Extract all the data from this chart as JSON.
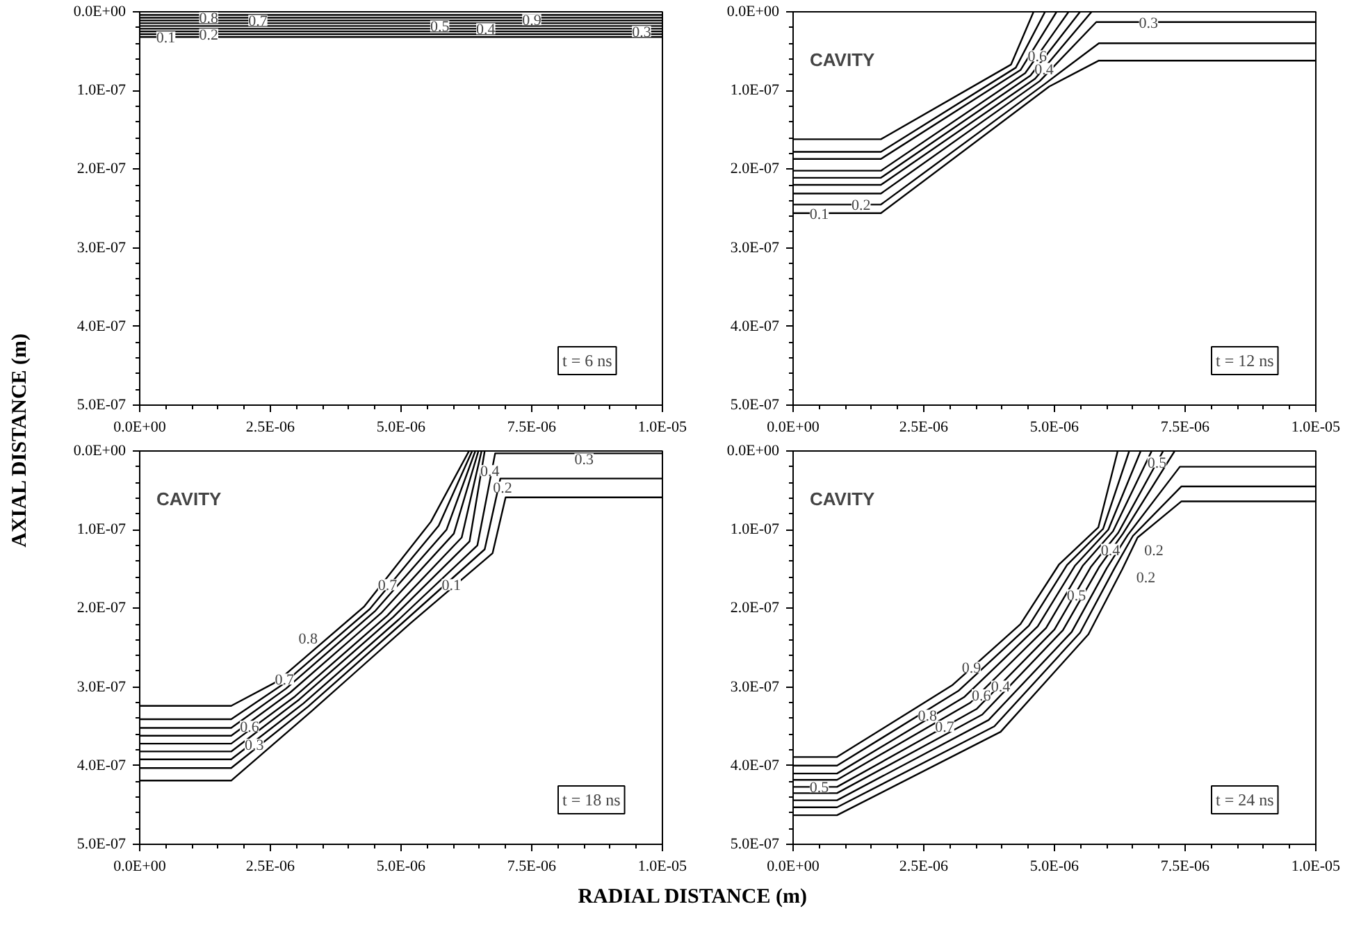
{
  "chart_data": [
    {
      "type": "line",
      "title": "t = 6 ns",
      "ylabel": "AXIAL DISTANCE (m)",
      "xlim": [
        0,
        1e-05
      ],
      "ylim": [
        5e-07,
        0
      ],
      "xticks": [
        {
          "value": 0,
          "label": "0.0E+00"
        },
        {
          "value": 2.5e-06,
          "label": "2.5E-06"
        },
        {
          "value": 5e-06,
          "label": "5.0E-06"
        },
        {
          "value": 7.5e-06,
          "label": "7.5E-06"
        },
        {
          "value": 1e-05,
          "label": "1.0E-05"
        }
      ],
      "yticks": [
        {
          "value": 0,
          "label": "0.0E+00"
        },
        {
          "value": 1e-07,
          "label": "1.0E-07"
        },
        {
          "value": 2e-07,
          "label": "2.0E-07"
        },
        {
          "value": 3e-07,
          "label": "3.0E-07"
        },
        {
          "value": 4e-07,
          "label": "4.0E-07"
        },
        {
          "value": 5e-07,
          "label": "5.0E-07"
        }
      ],
      "grid": false,
      "series": [
        {
          "color": "#000000",
          "x": [
            0,
            1e-05
          ],
          "values": [
            3.2e-08,
            3.2e-08
          ]
        },
        {
          "color": "#000000",
          "x": [
            0,
            1e-05
          ],
          "values": [
            2.85e-08,
            2.85e-08
          ]
        },
        {
          "color": "#000000",
          "x": [
            0,
            1e-05
          ],
          "values": [
            2.5e-08,
            2.5e-08
          ]
        },
        {
          "color": "#000000",
          "x": [
            0,
            1e-05
          ],
          "values": [
            2.15e-08,
            2.15e-08
          ]
        },
        {
          "color": "#000000",
          "x": [
            0,
            1e-05
          ],
          "values": [
            1.8e-08,
            1.8e-08
          ]
        },
        {
          "color": "#000000",
          "x": [
            0,
            1e-05
          ],
          "values": [
            1.45e-08,
            1.45e-08
          ]
        },
        {
          "color": "#000000",
          "x": [
            0,
            1e-05
          ],
          "values": [
            1.1e-08,
            1.1e-08
          ]
        },
        {
          "color": "#000000",
          "x": [
            0,
            1e-05
          ],
          "values": [
            7.5e-09,
            7.5e-09
          ]
        },
        {
          "color": "#000000",
          "x": [
            0,
            1e-05
          ],
          "values": [
            4e-09,
            4e-09
          ]
        }
      ],
      "annotations": [
        {
          "text": "0.1",
          "x": 5e-07,
          "y": 3.2e-08
        },
        {
          "text": "0.2",
          "x": 1.32e-06,
          "y": 2.85e-08
        },
        {
          "text": "0.8",
          "x": 1.32e-06,
          "y": 7.5e-09
        },
        {
          "text": "0.7",
          "x": 2.26e-06,
          "y": 1.1e-08
        },
        {
          "text": "0.5",
          "x": 5.74e-06,
          "y": 1.8e-08
        },
        {
          "text": "0.4",
          "x": 6.62e-06,
          "y": 2.15e-08
        },
        {
          "text": "0.9",
          "x": 7.5e-06,
          "y": 1e-08
        },
        {
          "text": "0.3",
          "x": 9.6e-06,
          "y": 2.5e-08
        }
      ]
    },
    {
      "type": "line",
      "title": "t = 12 ns",
      "xlim": [
        0,
        1e-05
      ],
      "ylim": [
        5e-07,
        0
      ],
      "xticks": [
        {
          "value": 0,
          "label": "0.0E+00"
        },
        {
          "value": 2.5e-06,
          "label": "2.5E-06"
        },
        {
          "value": 5e-06,
          "label": "5.0E-06"
        },
        {
          "value": 7.5e-06,
          "label": "7.5E-06"
        },
        {
          "value": 1e-05,
          "label": "1.0E-05"
        }
      ],
      "yticks": [
        {
          "value": 0,
          "label": "0.0E+00"
        },
        {
          "value": 1e-07,
          "label": "1.0E-07"
        },
        {
          "value": 2e-07,
          "label": "2.0E-07"
        },
        {
          "value": 3e-07,
          "label": "3.0E-07"
        },
        {
          "value": 4e-07,
          "label": "4.0E-07"
        },
        {
          "value": 5e-07,
          "label": "5.0E-07"
        }
      ],
      "grid": false,
      "series": [
        {
          "color": "#000000",
          "x": [
            0,
            1.68e-06,
            4.9e-06,
            5.85e-06,
            1e-05
          ],
          "values": [
            2.56e-07,
            2.56e-07,
            9.5e-08,
            6.2e-08,
            6.2e-08
          ]
        },
        {
          "color": "#000000",
          "x": [
            0,
            1.68e-06,
            4.81e-06,
            5.85e-06,
            1e-05
          ],
          "values": [
            2.45e-07,
            2.45e-07,
            9.2e-08,
            4e-08,
            4e-08
          ]
        },
        {
          "color": "#000000",
          "x": [
            0,
            1.68e-06,
            4.72e-06,
            5.8e-06,
            1e-05
          ],
          "values": [
            2.31e-07,
            2.31e-07,
            8.8e-08,
            1.3e-08,
            1.3e-08
          ]
        },
        {
          "color": "#000000",
          "x": [
            0,
            1.68e-06,
            4.63e-06,
            5.71e-06
          ],
          "values": [
            2.2e-07,
            2.2e-07,
            8.5e-08,
            0
          ]
        },
        {
          "color": "#000000",
          "x": [
            0,
            1.68e-06,
            4.54e-06,
            5.49e-06
          ],
          "values": [
            2.11e-07,
            2.11e-07,
            8.1e-08,
            0
          ]
        },
        {
          "color": "#000000",
          "x": [
            0,
            1.68e-06,
            4.44e-06,
            5.27e-06
          ],
          "values": [
            2.02e-07,
            2.02e-07,
            7.8e-08,
            0
          ]
        },
        {
          "color": "#000000",
          "x": [
            0,
            1.68e-06,
            4.35e-06,
            5.04e-06
          ],
          "values": [
            1.87e-07,
            1.87e-07,
            7.4e-08,
            0
          ]
        },
        {
          "color": "#000000",
          "x": [
            0,
            1.68e-06,
            4.26e-06,
            4.82e-06
          ],
          "values": [
            1.78e-07,
            1.78e-07,
            7.1e-08,
            0
          ]
        },
        {
          "color": "#000000",
          "x": [
            0,
            1.68e-06,
            4.17e-06,
            4.6e-06
          ],
          "values": [
            1.62e-07,
            1.62e-07,
            6.7e-08,
            0
          ]
        }
      ],
      "annotations": [
        "CAVITY",
        {
          "text": "0.1",
          "x": 5e-07,
          "y": 2.56e-07
        },
        {
          "text": "0.2",
          "x": 1.3e-06,
          "y": 2.45e-07
        },
        {
          "text": "0.3",
          "x": 6.8e-06,
          "y": 1.3e-08
        },
        {
          "text": "0.6",
          "x": 4.67e-06,
          "y": 5.6e-08
        },
        {
          "text": "0.4",
          "x": 4.8e-06,
          "y": 7.2e-08
        }
      ]
    },
    {
      "type": "line",
      "title": "t = 18 ns",
      "xlabel": "RADIAL DISTANCE (m)",
      "xlim": [
        0,
        1e-05
      ],
      "ylim": [
        5e-07,
        0
      ],
      "xticks": [
        {
          "value": 0,
          "label": "0.0E+00"
        },
        {
          "value": 2.5e-06,
          "label": "2.5E-06"
        },
        {
          "value": 5e-06,
          "label": "5.0E-06"
        },
        {
          "value": 7.5e-06,
          "label": "7.5E-06"
        },
        {
          "value": 1e-05,
          "label": "1.0E-05"
        }
      ],
      "yticks": [
        {
          "value": 0,
          "label": "0.0E+00"
        },
        {
          "value": 1e-07,
          "label": "1.0E-07"
        },
        {
          "value": 2e-07,
          "label": "2.0E-07"
        },
        {
          "value": 3e-07,
          "label": "3.0E-07"
        },
        {
          "value": 4e-07,
          "label": "4.0E-07"
        },
        {
          "value": 5e-07,
          "label": "5.0E-07"
        }
      ],
      "grid": false,
      "series": [
        {
          "color": "#000000",
          "x": [
            0,
            1.75e-06,
            3.3e-06,
            5.18e-06,
            6.75e-06,
            7e-06,
            1e-05
          ],
          "values": [
            4.19e-07,
            4.19e-07,
            3.3e-07,
            2.19e-07,
            1.3e-07,
            5.9e-08,
            5.9e-08
          ]
        },
        {
          "color": "#000000",
          "x": [
            0,
            1.75e-06,
            3.22e-06,
            5.07e-06,
            6.6e-06,
            6.9e-06,
            1e-05
          ],
          "values": [
            4.03e-07,
            4.03e-07,
            3.25e-07,
            2.16e-07,
            1.25e-07,
            3.5e-08,
            3.5e-08
          ]
        },
        {
          "color": "#000000",
          "x": [
            0,
            1.75e-06,
            3.13e-06,
            4.96e-06,
            6.46e-06,
            6.8e-06,
            1e-05
          ],
          "values": [
            3.92e-07,
            3.92e-07,
            3.21e-07,
            2.14e-07,
            1.2e-07,
            3e-09,
            3e-09
          ]
        },
        {
          "color": "#000000",
          "x": [
            0,
            1.75e-06,
            3.05e-06,
            4.85e-06,
            6.31e-06,
            6.6e-06
          ],
          "values": [
            3.82e-07,
            3.82e-07,
            3.16e-07,
            2.11e-07,
            1.15e-07,
            0
          ]
        },
        {
          "color": "#000000",
          "x": [
            0,
            1.75e-06,
            2.97e-06,
            4.74e-06,
            6.16e-06,
            6.54e-06
          ],
          "values": [
            3.72e-07,
            3.72e-07,
            3.12e-07,
            2.09e-07,
            1.1e-07,
            0
          ]
        },
        {
          "color": "#000000",
          "x": [
            0,
            1.75e-06,
            2.88e-06,
            4.62e-06,
            6.01e-06,
            6.48e-06
          ],
          "values": [
            3.62e-07,
            3.62e-07,
            3.07e-07,
            2.06e-07,
            1.05e-07,
            0
          ]
        },
        {
          "color": "#000000",
          "x": [
            0,
            1.75e-06,
            2.8e-06,
            4.51e-06,
            5.87e-06,
            6.42e-06
          ],
          "values": [
            3.52e-07,
            3.52e-07,
            3.02e-07,
            2.03e-07,
            1e-07,
            0
          ]
        },
        {
          "color": "#000000",
          "x": [
            0,
            1.75e-06,
            2.71e-06,
            4.4e-06,
            5.72e-06,
            6.36e-06
          ],
          "values": [
            3.41e-07,
            3.41e-07,
            2.98e-07,
            2.01e-07,
            9.5e-08,
            0
          ]
        },
        {
          "color": "#000000",
          "x": [
            0,
            1.75e-06,
            2.63e-06,
            4.29e-06,
            5.57e-06,
            6.3e-06
          ],
          "values": [
            3.24e-07,
            3.24e-07,
            2.93e-07,
            1.98e-07,
            9e-08,
            0
          ]
        }
      ],
      "annotations": [
        "CAVITY",
        {
          "text": "0.3",
          "x": 8.5e-06,
          "y": 1e-08
        },
        {
          "text": "0.4",
          "x": 6.7e-06,
          "y": 2.5e-08
        },
        {
          "text": "0.2",
          "x": 6.94e-06,
          "y": 4.6e-08
        },
        {
          "text": "0.7",
          "x": 4.74e-06,
          "y": 1.7e-07
        },
        {
          "text": "0.1",
          "x": 5.96e-06,
          "y": 1.7e-07
        },
        {
          "text": "0.8",
          "x": 3.22e-06,
          "y": 2.38e-07
        },
        {
          "text": "0.7",
          "x": 2.77e-06,
          "y": 2.9e-07
        },
        {
          "text": "0.6",
          "x": 2.1e-06,
          "y": 3.5e-07
        },
        {
          "text": "0.3",
          "x": 2.19e-06,
          "y": 3.73e-07
        }
      ]
    },
    {
      "type": "line",
      "title": "t = 24 ns",
      "xlim": [
        0,
        1e-05
      ],
      "ylim": [
        5e-07,
        0
      ],
      "xticks": [
        {
          "value": 0,
          "label": "0.0E+00"
        },
        {
          "value": 2.5e-06,
          "label": "2.5E-06"
        },
        {
          "value": 5e-06,
          "label": "5.0E-06"
        },
        {
          "value": 7.5e-06,
          "label": "7.5E-06"
        },
        {
          "value": 1e-05,
          "label": "1.0E-05"
        }
      ],
      "yticks": [
        {
          "value": 0,
          "label": "0.0E+00"
        },
        {
          "value": 1e-07,
          "label": "1.0E-07"
        },
        {
          "value": 2e-07,
          "label": "2.0E-07"
        },
        {
          "value": 3e-07,
          "label": "3.0E-07"
        },
        {
          "value": 4e-07,
          "label": "4.0E-07"
        },
        {
          "value": 5e-07,
          "label": "5.0E-07"
        }
      ],
      "grid": false,
      "series": [
        {
          "color": "#000000",
          "x": [
            0,
            8.4e-07,
            3.97e-06,
            5.65e-06,
            6.3e-06,
            6.59e-06,
            7.43e-06,
            1e-05
          ],
          "values": [
            4.63e-07,
            4.63e-07,
            3.57e-07,
            2.33e-07,
            1.5e-07,
            1.1e-07,
            6.4e-08,
            6.4e-08
          ]
        },
        {
          "color": "#000000",
          "x": [
            0,
            8.4e-07,
            3.85e-06,
            5.49e-06,
            6.15e-06,
            6.5e-06,
            7.43e-06,
            1e-05
          ],
          "values": [
            4.53e-07,
            4.53e-07,
            3.5e-07,
            2.31e-07,
            1.49e-07,
            1.08e-07,
            4.5e-08,
            4.5e-08
          ]
        },
        {
          "color": "#000000",
          "x": [
            0,
            8.4e-07,
            3.74e-06,
            5.33e-06,
            6e-06,
            6.4e-06,
            7.4e-06,
            1e-05
          ],
          "values": [
            4.44e-07,
            4.44e-07,
            3.42e-07,
            2.3e-07,
            1.49e-07,
            1.07e-07,
            2e-08,
            2e-08
          ]
        },
        {
          "color": "#000000",
          "x": [
            0,
            8.4e-07,
            3.62e-06,
            5.16e-06,
            5.85e-06,
            6.31e-06,
            7.3e-06
          ],
          "values": [
            4.35e-07,
            4.35e-07,
            3.35e-07,
            2.28e-07,
            1.48e-07,
            1.05e-07,
            0
          ]
        },
        {
          "color": "#000000",
          "x": [
            0,
            8.4e-07,
            3.51e-06,
            5e-06,
            5.7e-06,
            6.22e-06,
            7.08e-06
          ],
          "values": [
            4.27e-07,
            4.27e-07,
            3.28e-07,
            2.27e-07,
            1.47e-07,
            1.04e-07,
            0
          ]
        },
        {
          "color": "#000000",
          "x": [
            0,
            8.4e-07,
            3.39e-06,
            4.84e-06,
            5.54e-06,
            6.12e-06,
            6.86e-06
          ],
          "values": [
            4.18e-07,
            4.18e-07,
            3.2e-07,
            2.25e-07,
            1.46e-07,
            1.02e-07,
            0
          ]
        },
        {
          "color": "#000000",
          "x": [
            0,
            8.4e-07,
            3.27e-06,
            4.68e-06,
            5.39e-06,
            6.03e-06,
            6.65e-06
          ],
          "values": [
            4.1e-07,
            4.1e-07,
            3.13e-07,
            2.23e-07,
            1.46e-07,
            1e-07,
            0
          ]
        },
        {
          "color": "#000000",
          "x": [
            0,
            8.4e-07,
            3.16e-06,
            4.51e-06,
            5.24e-06,
            5.93e-06,
            6.43e-06
          ],
          "values": [
            4e-07,
            4e-07,
            3.05e-07,
            2.22e-07,
            1.45e-07,
            9.9e-08,
            0
          ]
        },
        {
          "color": "#000000",
          "x": [
            0,
            8.4e-07,
            3.04e-06,
            4.35e-06,
            5.09e-06,
            5.84e-06,
            6.21e-06
          ],
          "values": [
            3.89e-07,
            3.89e-07,
            2.98e-07,
            2.2e-07,
            1.44e-07,
            9.7e-08,
            0
          ]
        }
      ],
      "annotations": [
        "CAVITY",
        {
          "text": "0.5",
          "x": 6.96e-06,
          "y": 1.4e-08
        },
        {
          "text": "0.4",
          "x": 6.07e-06,
          "y": 1.25e-07
        },
        {
          "text": "0.2",
          "x": 6.9e-06,
          "y": 1.25e-07
        },
        {
          "text": "0.2",
          "x": 6.75e-06,
          "y": 1.6e-07
        },
        {
          "text": "0.5",
          "x": 5.42e-06,
          "y": 1.83e-07
        },
        {
          "text": "0.9",
          "x": 3.41e-06,
          "y": 2.75e-07
        },
        {
          "text": "0.8",
          "x": 2.57e-06,
          "y": 3.36e-07
        },
        {
          "text": "0.7",
          "x": 2.9e-06,
          "y": 3.5e-07
        },
        {
          "text": "0.6",
          "x": 3.6e-06,
          "y": 3.1e-07
        },
        {
          "text": "0.4",
          "x": 3.97e-06,
          "y": 2.99e-07
        },
        {
          "text": "0.5",
          "x": 5e-07,
          "y": 4.27e-07
        }
      ]
    }
  ]
}
